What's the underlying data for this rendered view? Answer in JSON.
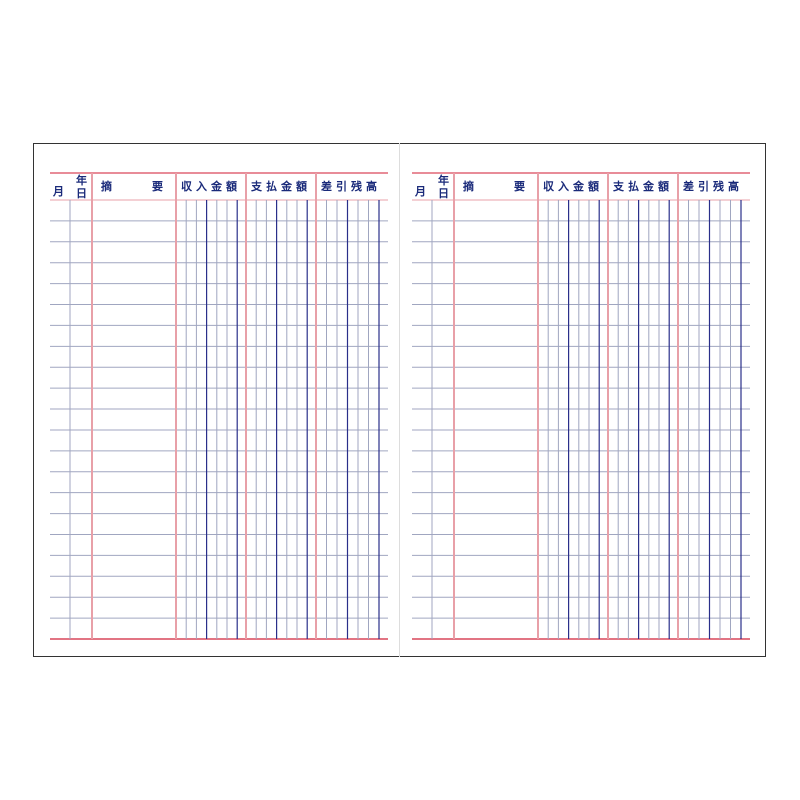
{
  "pages": [
    {
      "header": {
        "year": "年",
        "month": "月",
        "day": "日",
        "summary_1": "摘",
        "summary_2": "要",
        "income": "収入金額",
        "expense": "支払金額",
        "balance": "差引残高"
      }
    },
    {
      "header": {
        "year": "年",
        "month": "月",
        "day": "日",
        "summary_1": "摘",
        "summary_2": "要",
        "income": "収入金額",
        "expense": "支払金額",
        "balance": "差引残高"
      }
    }
  ],
  "colors": {
    "red_rule": "#d9475a",
    "pink_rule": "#e8a0a8",
    "blue_rule": "#2a2f8a",
    "grey_rule": "#a0a6c0",
    "header_text": "#1a2a7a"
  },
  "rows_per_page": 21
}
